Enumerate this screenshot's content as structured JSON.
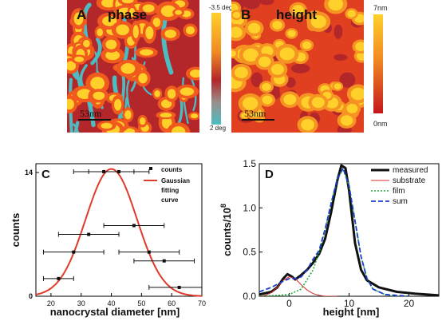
{
  "panels": {
    "a": {
      "letter": "A",
      "label": "phase",
      "scalebar": "53nm",
      "colorbar": {
        "max": "-3.5 deg",
        "min": "2 deg"
      }
    },
    "b": {
      "letter": "B",
      "label": "height",
      "scalebar": "53nm",
      "colorbar": {
        "max": "7nm",
        "min": "0nm"
      }
    }
  },
  "colors": {
    "afm_dark": "#b3262a",
    "afm_orange": "#f05a1e",
    "afm_yellow": "#ffd02a",
    "afm_cyan": "#4bbdc2",
    "fit_red": "#e03a2a",
    "sum_blue": "#1c3ec9",
    "film_green": "#21b13a",
    "substrate_red": "#d42a2a"
  },
  "chart_data": [
    {
      "type": "scatter",
      "panel_letter": "C",
      "xlabel": "nanocrystal diameter  [nm]",
      "ylabel": "counts",
      "xlim": [
        15,
        70
      ],
      "ylim": [
        0,
        15
      ],
      "xticks": [
        "20",
        "30",
        "40",
        "50",
        "60",
        "70"
      ],
      "yticks": [
        "0",
        "14"
      ],
      "legend": {
        "position": "top-right",
        "counts_label": "counts",
        "fit_label": [
          "Gaussian",
          "fitting",
          "curve"
        ]
      },
      "series": [
        {
          "name": "counts",
          "points": [
            {
              "x": 22.5,
              "y": 2,
              "xerr": 5
            },
            {
              "x": 27.5,
              "y": 5,
              "xerr": 10
            },
            {
              "x": 32.5,
              "y": 7,
              "xerr": 10
            },
            {
              "x": 37.5,
              "y": 14.1,
              "xerr": 10
            },
            {
              "x": 42.5,
              "y": 14.1,
              "xerr": 10
            },
            {
              "x": 47.5,
              "y": 8,
              "xerr": 10
            },
            {
              "x": 52.5,
              "y": 5,
              "xerr": 10
            },
            {
              "x": 57.5,
              "y": 4,
              "xerr": 10
            },
            {
              "x": 62.5,
              "y": 1,
              "xerr": 10
            }
          ]
        },
        {
          "name": "Gaussian fitting curve",
          "gaussian": {
            "mean": 40,
            "sigma": 8.5,
            "amplitude": 14.4
          }
        }
      ]
    },
    {
      "type": "line",
      "panel_letter": "D",
      "xlabel": "height  [nm]",
      "ylabel": "counts/10",
      "ylabel_exp": "8",
      "xlim": [
        -5,
        25
      ],
      "ylim": [
        0,
        1.5
      ],
      "xticks": [
        "0",
        "10",
        "20"
      ],
      "yticks": [
        "0.0",
        "0.5",
        "1.0",
        "1.5"
      ],
      "legend": {
        "position": "top-right"
      },
      "series": [
        {
          "name": "measured",
          "points": [
            [
              -5,
              0.02
            ],
            [
              -3,
              0.05
            ],
            [
              -2,
              0.1
            ],
            [
              -1,
              0.2
            ],
            [
              -0.3,
              0.25
            ],
            [
              0.5,
              0.22
            ],
            [
              1,
              0.19
            ],
            [
              2,
              0.24
            ],
            [
              3,
              0.3
            ],
            [
              4,
              0.38
            ],
            [
              5,
              0.48
            ],
            [
              6,
              0.65
            ],
            [
              7,
              0.95
            ],
            [
              8,
              1.3
            ],
            [
              8.7,
              1.48
            ],
            [
              9.4,
              1.45
            ],
            [
              10,
              1.2
            ],
            [
              11,
              0.6
            ],
            [
              12,
              0.3
            ],
            [
              13,
              0.18
            ],
            [
              15,
              0.1
            ],
            [
              18,
              0.05
            ],
            [
              21,
              0.03
            ],
            [
              25,
              0.01
            ]
          ]
        },
        {
          "name": "substrate",
          "points": [
            [
              -5,
              0.0
            ],
            [
              -4,
              0.01
            ],
            [
              -3,
              0.04
            ],
            [
              -2,
              0.1
            ],
            [
              -1,
              0.18
            ],
            [
              0,
              0.22
            ],
            [
              1,
              0.2
            ],
            [
              2,
              0.13
            ],
            [
              3,
              0.07
            ],
            [
              4,
              0.03
            ],
            [
              5,
              0.01
            ],
            [
              6,
              0.0
            ],
            [
              8,
              0.0
            ]
          ]
        },
        {
          "name": "film",
          "points": [
            [
              -5,
              0.0
            ],
            [
              -2,
              0.01
            ],
            [
              0,
              0.02
            ],
            [
              2,
              0.08
            ],
            [
              4,
              0.3
            ],
            [
              5,
              0.5
            ],
            [
              6,
              0.75
            ],
            [
              7,
              1.05
            ],
            [
              8,
              1.32
            ],
            [
              9,
              1.44
            ],
            [
              10,
              1.25
            ],
            [
              11,
              0.85
            ],
            [
              12,
              0.45
            ],
            [
              13,
              0.2
            ],
            [
              14,
              0.08
            ],
            [
              16,
              0.02
            ],
            [
              18,
              0.0
            ]
          ]
        },
        {
          "name": "sum",
          "points": [
            [
              -5,
              0.05
            ],
            [
              -3,
              0.1
            ],
            [
              -1,
              0.17
            ],
            [
              0,
              0.2
            ],
            [
              1,
              0.2
            ],
            [
              2,
              0.22
            ],
            [
              3,
              0.3
            ],
            [
              4,
              0.42
            ],
            [
              5,
              0.52
            ],
            [
              6,
              0.76
            ],
            [
              7,
              1.05
            ],
            [
              8,
              1.32
            ],
            [
              9,
              1.45
            ],
            [
              10,
              1.25
            ],
            [
              11,
              0.85
            ],
            [
              12,
              0.45
            ],
            [
              13,
              0.2
            ],
            [
              14,
              0.08
            ],
            [
              16,
              0.02
            ],
            [
              20,
              0.0
            ]
          ]
        }
      ]
    }
  ]
}
